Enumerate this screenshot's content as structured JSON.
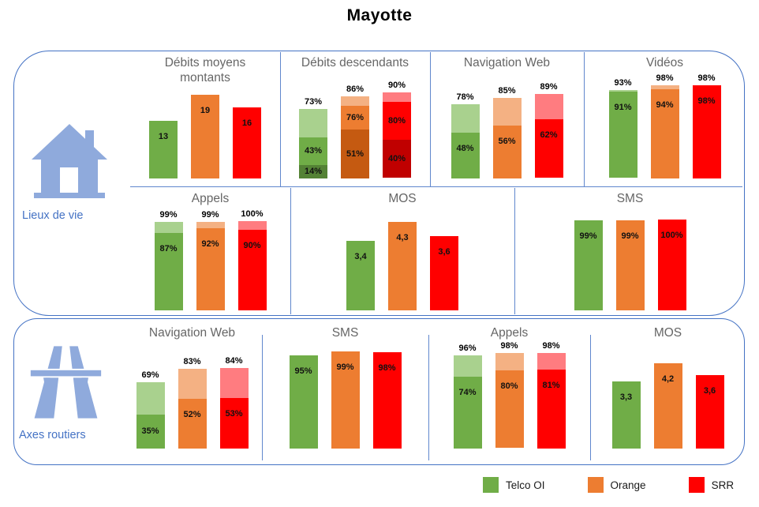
{
  "title": "Mayotte",
  "sections": [
    {
      "id": "lieux_de_vie",
      "label": "Lieux de vie",
      "icon": "house-icon"
    },
    {
      "id": "axes_routiers",
      "label": "Axes routiers",
      "icon": "motorway-icon"
    }
  ],
  "legend": {
    "items": [
      {
        "label": "Telco OI",
        "color": "#70AD47"
      },
      {
        "label": "Orange",
        "color": "#ED7D31"
      },
      {
        "label": "SRR",
        "color": "#FF0000"
      }
    ]
  },
  "palette": {
    "light": [
      "#A9D18E",
      "#F4B183",
      "#FF7C80"
    ],
    "mid": [
      "#70AD47",
      "#ED7D31",
      "#FF0000"
    ],
    "dark": [
      "#548235",
      "#C55A11",
      "#C00000"
    ],
    "frame_blue": "#4472C4",
    "icon_blue": "#8FAADC",
    "title_gray": "#666666"
  },
  "chart_data": [
    {
      "id": "lv_debits_montants",
      "section": "Lieux de vie",
      "title": "Débits moyens montants",
      "type": "bar",
      "style": "solid",
      "categories": [
        "Telco OI",
        "Orange",
        "SRR"
      ],
      "bars": [
        {
          "operator": "Telco OI",
          "levels": [
            13
          ],
          "labels": [
            "13"
          ]
        },
        {
          "operator": "Orange",
          "levels": [
            19
          ],
          "labels": [
            "19"
          ]
        },
        {
          "operator": "SRR",
          "levels": [
            16
          ],
          "labels": [
            "16"
          ]
        }
      ]
    },
    {
      "id": "lv_debits_descendants",
      "section": "Lieux de vie",
      "title": "Débits descendants",
      "type": "bar",
      "style": "stacked3",
      "categories": [
        "Telco OI",
        "Orange",
        "SRR"
      ],
      "bars": [
        {
          "operator": "Telco OI",
          "levels": [
            14,
            43,
            73
          ],
          "labels": [
            "14%",
            "43%",
            "73%"
          ]
        },
        {
          "operator": "Orange",
          "levels": [
            51,
            76,
            86
          ],
          "labels": [
            "51%",
            "76%",
            "86%"
          ]
        },
        {
          "operator": "SRR",
          "levels": [
            40,
            80,
            90
          ],
          "labels": [
            "40%",
            "80%",
            "90%"
          ]
        }
      ]
    },
    {
      "id": "lv_navigation_web",
      "section": "Lieux de vie",
      "title": "Navigation Web",
      "type": "bar",
      "style": "stacked2",
      "categories": [
        "Telco OI",
        "Orange",
        "SRR"
      ],
      "bars": [
        {
          "operator": "Telco OI",
          "levels": [
            48,
            78
          ],
          "labels": [
            "48%",
            "78%"
          ]
        },
        {
          "operator": "Orange",
          "levels": [
            56,
            85
          ],
          "labels": [
            "56%",
            "85%"
          ]
        },
        {
          "operator": "SRR",
          "levels": [
            62,
            89
          ],
          "labels": [
            "62%",
            "89%"
          ]
        }
      ]
    },
    {
      "id": "lv_videos",
      "section": "Lieux de vie",
      "title": "Vidéos",
      "type": "bar",
      "style": "stacked2",
      "categories": [
        "Telco OI",
        "Orange",
        "SRR"
      ],
      "bars": [
        {
          "operator": "Telco OI",
          "levels": [
            91,
            93
          ],
          "labels": [
            "91%",
            "93%"
          ]
        },
        {
          "operator": "Orange",
          "levels": [
            94,
            98
          ],
          "labels": [
            "94%",
            "98%"
          ]
        },
        {
          "operator": "SRR",
          "levels": [
            98,
            98
          ],
          "labels": [
            "98%",
            "98%"
          ]
        }
      ]
    },
    {
      "id": "lv_appels",
      "section": "Lieux de vie",
      "title": "Appels",
      "type": "bar",
      "style": "stacked2",
      "categories": [
        "Telco OI",
        "Orange",
        "SRR"
      ],
      "bars": [
        {
          "operator": "Telco OI",
          "levels": [
            87,
            99
          ],
          "labels": [
            "87%",
            "99%"
          ]
        },
        {
          "operator": "Orange",
          "levels": [
            92,
            99
          ],
          "labels": [
            "92%",
            "99%"
          ]
        },
        {
          "operator": "SRR",
          "levels": [
            90,
            100
          ],
          "labels": [
            "90%",
            "100%"
          ]
        }
      ]
    },
    {
      "id": "lv_mos",
      "section": "Lieux de vie",
      "title": "MOS",
      "type": "bar",
      "style": "solid",
      "categories": [
        "Telco OI",
        "Orange",
        "SRR"
      ],
      "bars": [
        {
          "operator": "Telco OI",
          "levels": [
            3.4
          ],
          "labels": [
            "3,4"
          ]
        },
        {
          "operator": "Orange",
          "levels": [
            4.3
          ],
          "labels": [
            "4,3"
          ]
        },
        {
          "operator": "SRR",
          "levels": [
            3.6
          ],
          "labels": [
            "3,6"
          ]
        }
      ]
    },
    {
      "id": "lv_sms",
      "section": "Lieux de vie",
      "title": "SMS",
      "type": "bar",
      "style": "solid",
      "categories": [
        "Telco OI",
        "Orange",
        "SRR"
      ],
      "bars": [
        {
          "operator": "Telco OI",
          "levels": [
            99
          ],
          "labels": [
            "99%"
          ]
        },
        {
          "operator": "Orange",
          "levels": [
            99
          ],
          "labels": [
            "99%"
          ]
        },
        {
          "operator": "SRR",
          "levels": [
            100
          ],
          "labels": [
            "100%"
          ]
        }
      ]
    },
    {
      "id": "ar_navigation_web",
      "section": "Axes routiers",
      "title": "Navigation Web",
      "type": "bar",
      "style": "stacked2",
      "categories": [
        "Telco OI",
        "Orange",
        "SRR"
      ],
      "bars": [
        {
          "operator": "Telco OI",
          "levels": [
            35,
            69
          ],
          "labels": [
            "35%",
            "69%"
          ]
        },
        {
          "operator": "Orange",
          "levels": [
            52,
            83
          ],
          "labels": [
            "52%",
            "83%"
          ]
        },
        {
          "operator": "SRR",
          "levels": [
            53,
            84
          ],
          "labels": [
            "53%",
            "84%"
          ]
        }
      ]
    },
    {
      "id": "ar_sms",
      "section": "Axes routiers",
      "title": "SMS",
      "type": "bar",
      "style": "solid",
      "categories": [
        "Telco OI",
        "Orange",
        "SRR"
      ],
      "bars": [
        {
          "operator": "Telco OI",
          "levels": [
            95
          ],
          "labels": [
            "95%"
          ]
        },
        {
          "operator": "Orange",
          "levels": [
            99
          ],
          "labels": [
            "99%"
          ]
        },
        {
          "operator": "SRR",
          "levels": [
            98
          ],
          "labels": [
            "98%"
          ]
        }
      ]
    },
    {
      "id": "ar_appels",
      "section": "Axes routiers",
      "title": "Appels",
      "type": "bar",
      "style": "stacked2",
      "categories": [
        "Telco OI",
        "Orange",
        "SRR"
      ],
      "bars": [
        {
          "operator": "Telco OI",
          "levels": [
            74,
            96
          ],
          "labels": [
            "74%",
            "96%"
          ]
        },
        {
          "operator": "Orange",
          "levels": [
            80,
            98
          ],
          "labels": [
            "80%",
            "98%"
          ]
        },
        {
          "operator": "SRR",
          "levels": [
            81,
            98
          ],
          "labels": [
            "81%",
            "98%"
          ]
        }
      ]
    },
    {
      "id": "ar_mos",
      "section": "Axes routiers",
      "title": "MOS",
      "type": "bar",
      "style": "solid",
      "categories": [
        "Telco OI",
        "Orange",
        "SRR"
      ],
      "bars": [
        {
          "operator": "Telco OI",
          "levels": [
            3.3
          ],
          "labels": [
            "3,3"
          ]
        },
        {
          "operator": "Orange",
          "levels": [
            4.2
          ],
          "labels": [
            "4,2"
          ]
        },
        {
          "operator": "SRR",
          "levels": [
            3.6
          ],
          "labels": [
            "3,6"
          ]
        }
      ]
    }
  ]
}
